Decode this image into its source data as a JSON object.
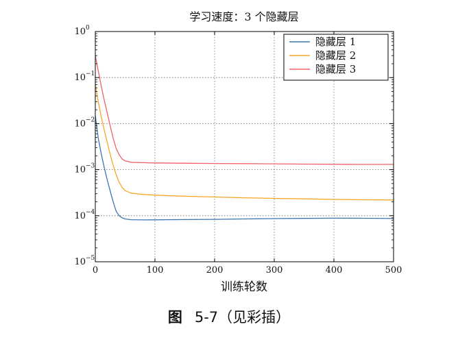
{
  "chart_data": {
    "type": "line",
    "title": "学习速度：3 个隐藏层",
    "xlabel": "训练轮数",
    "ylabel": "",
    "xlim": [
      0,
      500
    ],
    "ylim": [
      1e-05,
      1
    ],
    "y_scale": "log",
    "grid": true,
    "legend_position": "top-right",
    "x_ticks": [
      {
        "value": 0,
        "label": "0"
      },
      {
        "value": 100,
        "label": "100"
      },
      {
        "value": 200,
        "label": "200"
      },
      {
        "value": 300,
        "label": "300"
      },
      {
        "value": 400,
        "label": "400"
      },
      {
        "value": 500,
        "label": "500"
      }
    ],
    "y_ticks": [
      {
        "value": 1,
        "base": "10",
        "exp": "0"
      },
      {
        "value": 0.1,
        "base": "10",
        "exp": "−1"
      },
      {
        "value": 0.01,
        "base": "10",
        "exp": "−2"
      },
      {
        "value": 0.001,
        "base": "10",
        "exp": "−3"
      },
      {
        "value": 0.0001,
        "base": "10",
        "exp": "−4"
      },
      {
        "value": 1e-05,
        "base": "10",
        "exp": "−5"
      }
    ],
    "series": [
      {
        "name": "隐藏层 1",
        "color": "#3a75b0",
        "points": [
          [
            0,
            0.015
          ],
          [
            5,
            0.0048
          ],
          [
            10,
            0.0022
          ],
          [
            15,
            0.0011
          ],
          [
            20,
            0.0006
          ],
          [
            25,
            0.00034
          ],
          [
            30,
            0.0002
          ],
          [
            35,
            0.000125
          ],
          [
            40,
            0.0001
          ],
          [
            45,
            9e-05
          ],
          [
            50,
            8.5e-05
          ],
          [
            60,
            8.2e-05
          ],
          [
            80,
            8.1e-05
          ],
          [
            100,
            8.15e-05
          ],
          [
            150,
            8.25e-05
          ],
          [
            200,
            8.35e-05
          ],
          [
            250,
            8.5e-05
          ],
          [
            300,
            8.65e-05
          ],
          [
            350,
            8.75e-05
          ],
          [
            400,
            8.85e-05
          ],
          [
            450,
            8.8e-05
          ],
          [
            500,
            8.7e-05
          ]
        ]
      },
      {
        "name": "隐藏层 2",
        "color": "#f5a623",
        "points": [
          [
            0,
            0.07
          ],
          [
            5,
            0.03
          ],
          [
            10,
            0.014
          ],
          [
            15,
            0.0072
          ],
          [
            20,
            0.0039
          ],
          [
            25,
            0.0021
          ],
          [
            30,
            0.00125
          ],
          [
            35,
            0.00078
          ],
          [
            40,
            0.00053
          ],
          [
            45,
            0.00041
          ],
          [
            50,
            0.00035
          ],
          [
            60,
            0.00031
          ],
          [
            80,
            0.00029
          ],
          [
            100,
            0.00028
          ],
          [
            150,
            0.000265
          ],
          [
            200,
            0.000255
          ],
          [
            250,
            0.000245
          ],
          [
            300,
            0.000238
          ],
          [
            350,
            0.000232
          ],
          [
            400,
            0.000226
          ],
          [
            450,
            0.000222
          ],
          [
            500,
            0.00022
          ]
        ]
      },
      {
        "name": "隐藏层 3",
        "color": "#f0606a",
        "points": [
          [
            0,
            0.3
          ],
          [
            5,
            0.14
          ],
          [
            10,
            0.065
          ],
          [
            15,
            0.032
          ],
          [
            20,
            0.017
          ],
          [
            25,
            0.0088
          ],
          [
            30,
            0.0048
          ],
          [
            35,
            0.0029
          ],
          [
            40,
            0.0021
          ],
          [
            45,
            0.0017
          ],
          [
            50,
            0.00155
          ],
          [
            60,
            0.00145
          ],
          [
            80,
            0.00142
          ],
          [
            100,
            0.0014
          ],
          [
            150,
            0.00138
          ],
          [
            200,
            0.00136
          ],
          [
            250,
            0.00135
          ],
          [
            300,
            0.00134
          ],
          [
            350,
            0.00132
          ],
          [
            400,
            0.00131
          ],
          [
            450,
            0.0013
          ],
          [
            500,
            0.0013
          ]
        ]
      }
    ]
  },
  "caption": {
    "figure_label": "图",
    "figure_number": "5-7",
    "note": "（见彩插）"
  }
}
